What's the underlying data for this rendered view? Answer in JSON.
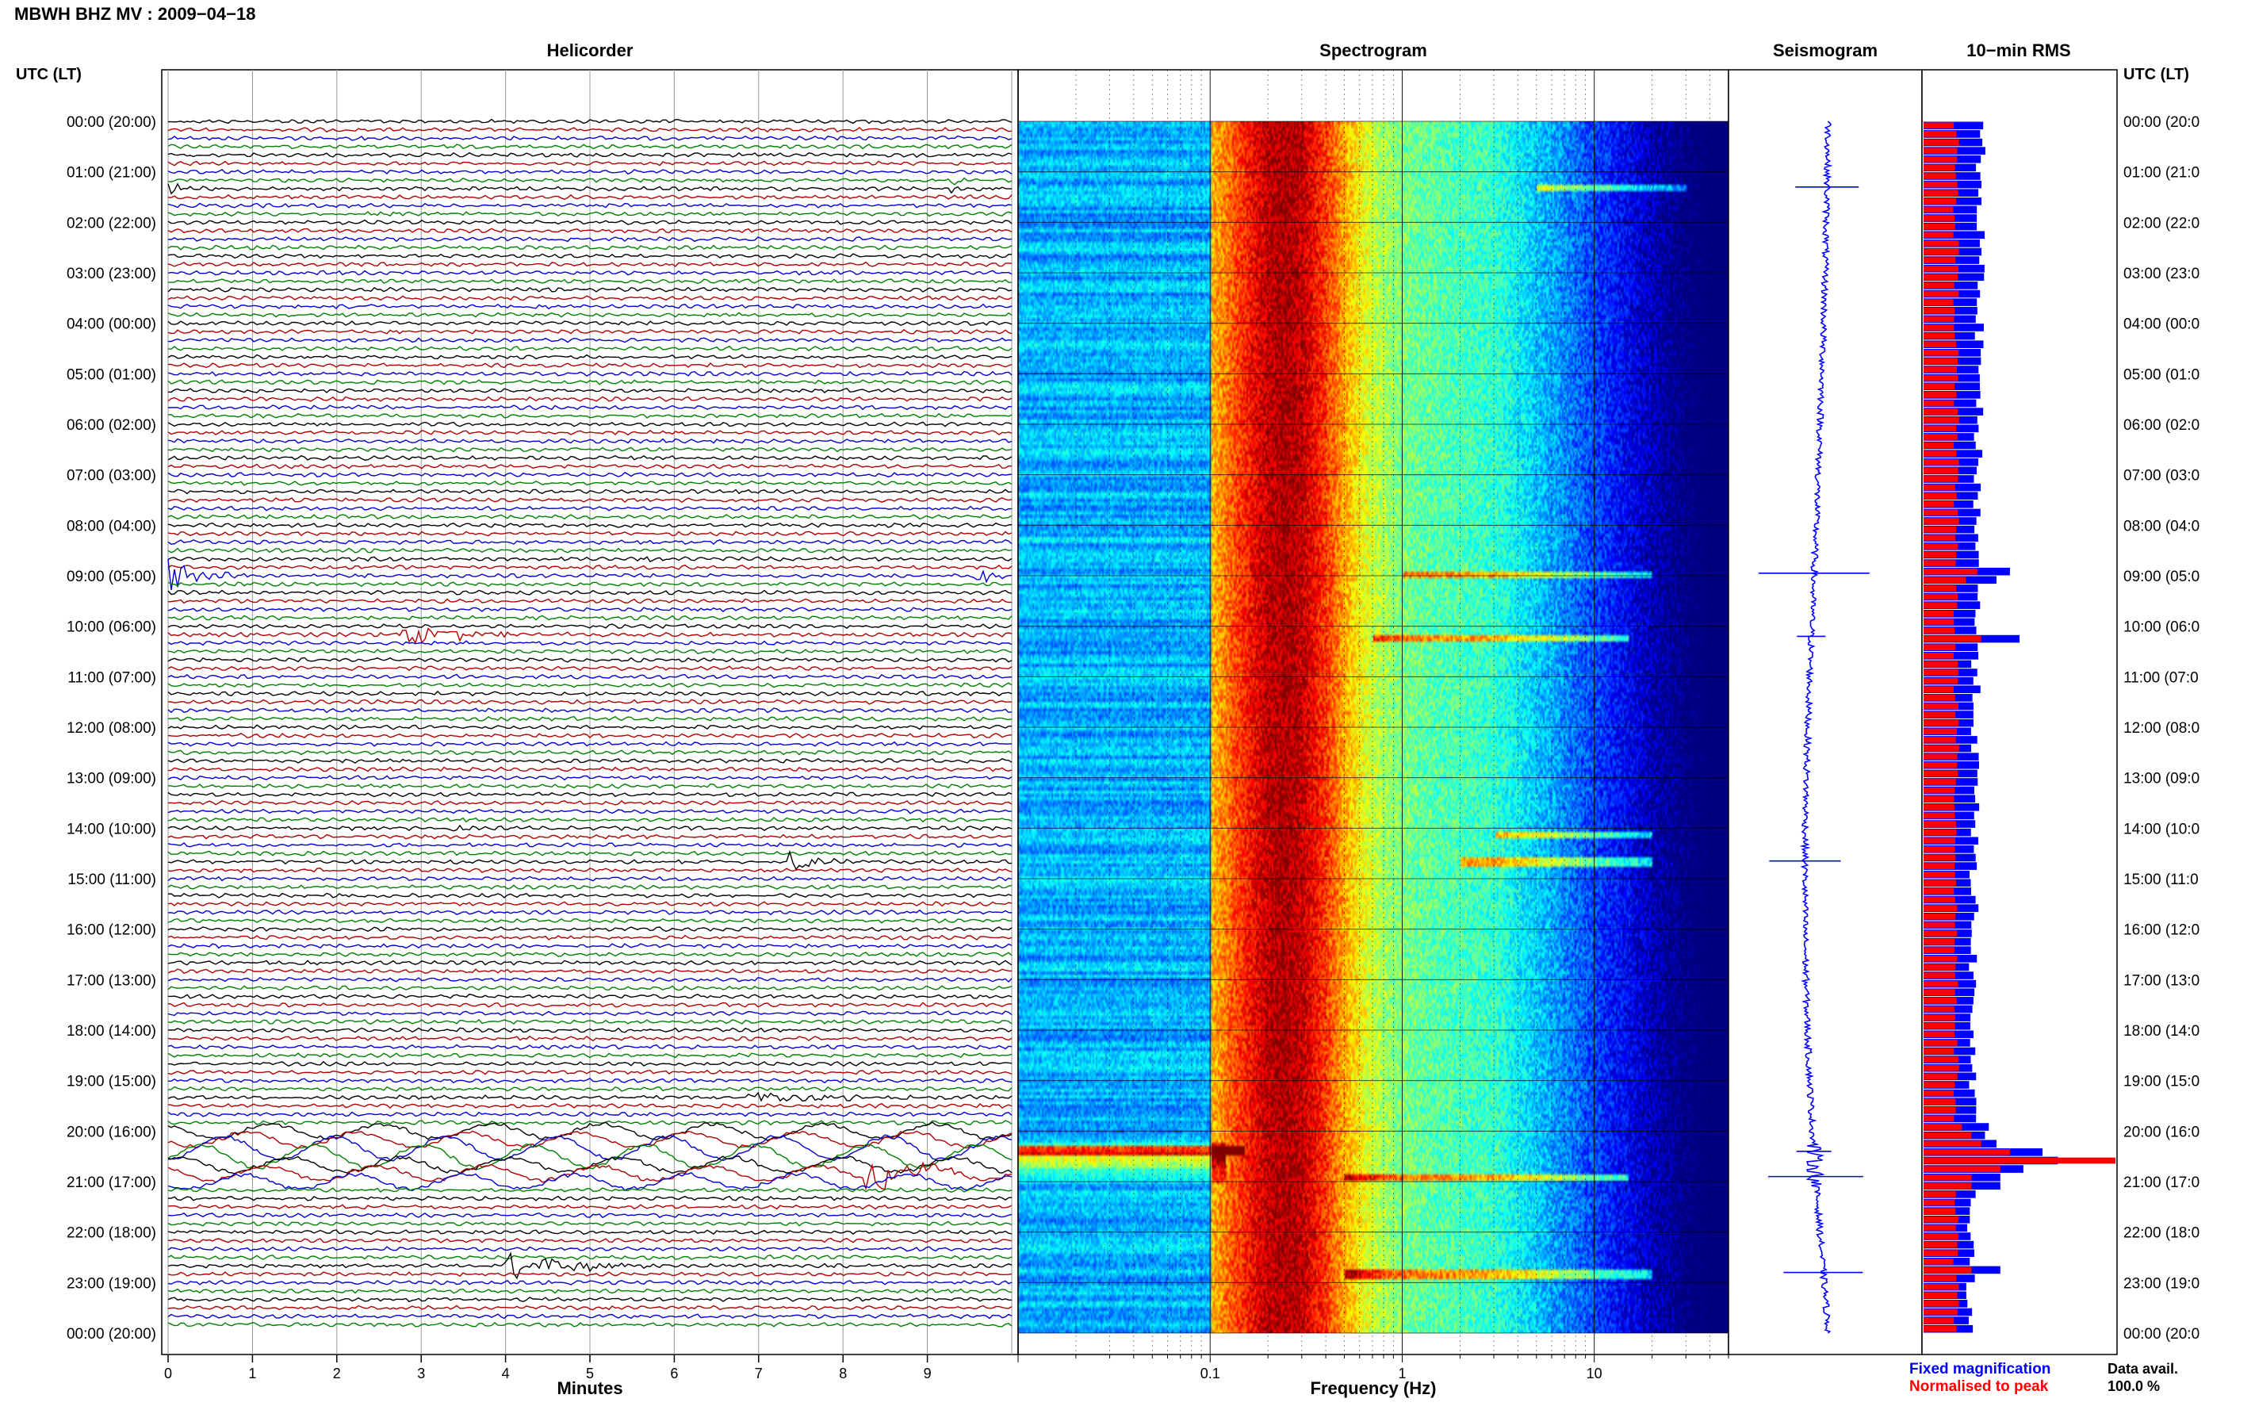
{
  "title": "MBWH BHZ MV : 2009−04−18",
  "time_axis_label": "UTC (LT)",
  "panels": {
    "helicorder": "Helicorder",
    "spectrogram": "Spectrogram",
    "seismogram": "Seismogram",
    "rms": "10−min RMS"
  },
  "hour_labels": [
    "00:00 (20:00)",
    "01:00 (21:00)",
    "02:00 (22:00)",
    "03:00 (23:00)",
    "04:00 (00:00)",
    "05:00 (01:00)",
    "06:00 (02:00)",
    "07:00 (03:00)",
    "08:00 (04:00)",
    "09:00 (05:00)",
    "10:00 (06:00)",
    "11:00 (07:00)",
    "12:00 (08:00)",
    "13:00 (09:00)",
    "14:00 (10:00)",
    "15:00 (11:00)",
    "16:00 (12:00)",
    "17:00 (13:00)",
    "18:00 (14:00)",
    "19:00 (15:00)",
    "20:00 (16:00)",
    "21:00 (17:00)",
    "22:00 (18:00)",
    "23:00 (19:00)",
    "00:00 (20:00)"
  ],
  "right_hour_labels": [
    "00:00 (20:0",
    "01:00 (21:0",
    "02:00 (22:0",
    "03:00 (23:0",
    "04:00 (00:0",
    "05:00 (01:0",
    "06:00 (02:0",
    "07:00 (03:0",
    "08:00 (04:0",
    "09:00 (05:0",
    "10:00 (06:0",
    "11:00 (07:0",
    "12:00 (08:0",
    "13:00 (09:0",
    "14:00 (10:0",
    "15:00 (11:0",
    "16:00 (12:0",
    "17:00 (13:0",
    "18:00 (14:0",
    "19:00 (15:0",
    "20:00 (16:0",
    "21:00 (17:0",
    "22:00 (18:0",
    "23:00 (19:0",
    "00:00 (20:0"
  ],
  "helicorder": {
    "xlabel": "Minutes",
    "minute_ticks": [
      "0",
      "1",
      "2",
      "3",
      "4",
      "5",
      "6",
      "7",
      "8",
      "9"
    ],
    "trace_colors": [
      "#000000",
      "#b00000",
      "#0000d0",
      "#008000"
    ],
    "events": [
      {
        "hour": 1.25,
        "minute": 9.3,
        "amp": 6,
        "dur": 0.3,
        "color": "#008000"
      },
      {
        "hour": 1.3,
        "minute": 0.0,
        "amp": 8,
        "dur": 0.6,
        "color": "#000000"
      },
      {
        "hour": 8.65,
        "minute": 5.7,
        "amp": 3,
        "dur": 1.5,
        "color": "#0000d0"
      },
      {
        "hour": 8.95,
        "minute": 9.6,
        "amp": 20,
        "dur": 0.4,
        "color": "#000000"
      },
      {
        "hour": 9.0,
        "minute": 0.0,
        "amp": 24,
        "dur": 1.0,
        "color": "#b00000"
      },
      {
        "hour": 10.1,
        "minute": 2.8,
        "amp": 14,
        "dur": 2.2,
        "color": "#b00000"
      },
      {
        "hour": 14.0,
        "minute": 3.4,
        "amp": 3,
        "dur": 0.6,
        "color": "#000000"
      },
      {
        "hour": 14.6,
        "minute": 7.4,
        "amp": 16,
        "dur": 0.8,
        "color": "#000000"
      },
      {
        "hour": 19.35,
        "minute": 6.9,
        "amp": 8,
        "dur": 3.2,
        "color": "#b00000"
      },
      {
        "hour": 20.8,
        "minute": 8.3,
        "amp": 22,
        "dur": 1.5,
        "color": "#b00000"
      },
      {
        "hour": 22.65,
        "minute": 4.0,
        "amp": 20,
        "dur": 2.0,
        "color": "#000000"
      }
    ]
  },
  "spectrogram": {
    "xlabel": "Frequency (Hz)",
    "xscale": "log",
    "xlim": [
      0.01,
      50
    ],
    "tick_labels": [
      "0.1",
      "1",
      "10"
    ],
    "tick_values": [
      0.1,
      1,
      10
    ],
    "events": [
      {
        "hour": 1.3,
        "fmin": 5,
        "fmax": 30
      },
      {
        "hour": 8.95,
        "fmin": 1,
        "fmax": 20
      },
      {
        "hour": 10.2,
        "fmin": 0.7,
        "fmax": 15
      },
      {
        "hour": 14.1,
        "fmin": 3,
        "fmax": 20
      },
      {
        "hour": 14.65,
        "fmin": 2,
        "fmax": 20
      },
      {
        "hour": 20.35,
        "fmin": 0.01,
        "fmax": 0.15
      },
      {
        "hour": 20.9,
        "fmin": 0.5,
        "fmax": 15
      },
      {
        "hour": 22.8,
        "fmin": 0.5,
        "fmax": 20
      }
    ]
  },
  "seismogram": {
    "spikes": [
      {
        "hour": 1.3,
        "amp": 40
      },
      {
        "hour": 8.95,
        "amp": 70
      },
      {
        "hour": 10.2,
        "amp": 18
      },
      {
        "hour": 14.65,
        "amp": 45
      },
      {
        "hour": 20.4,
        "amp": 22
      },
      {
        "hour": 20.9,
        "amp": 60
      },
      {
        "hour": 22.8,
        "amp": 50
      }
    ]
  },
  "rms": {
    "legend_fixed": "Fixed magnification",
    "legend_normalised": "Normalised to peak",
    "legend_fixed_color": "#0000ff",
    "legend_normalised_color": "#ff0000",
    "data_avail_label": "Data avail.",
    "data_avail_value": "100.0 %",
    "base_fixed": 0.3,
    "base_normalised": 0.17,
    "peaks": [
      {
        "hour": 8.95,
        "fixed": 0.45,
        "normalised": 0.28
      },
      {
        "hour": 9.1,
        "fixed": 0.38,
        "normalised": 0.22
      },
      {
        "hour": 10.2,
        "fixed": 0.5,
        "normalised": 0.3
      },
      {
        "hour": 19.95,
        "fixed": 0.34,
        "normalised": 0.2
      },
      {
        "hour": 20.1,
        "fixed": 0.32,
        "normalised": 0.25
      },
      {
        "hour": 20.25,
        "fixed": 0.38,
        "normalised": 0.3
      },
      {
        "hour": 20.4,
        "fixed": 0.62,
        "normalised": 0.45
      },
      {
        "hour": 20.55,
        "fixed": 0.7,
        "normalised": 1.0
      },
      {
        "hour": 20.7,
        "fixed": 0.52,
        "normalised": 0.4
      },
      {
        "hour": 20.85,
        "fixed": 0.5,
        "normalised": 0.32
      },
      {
        "hour": 21.0,
        "fixed": 0.4,
        "normalised": 0.25
      },
      {
        "hour": 22.8,
        "fixed": 0.4,
        "normalised": 0.25
      }
    ]
  }
}
